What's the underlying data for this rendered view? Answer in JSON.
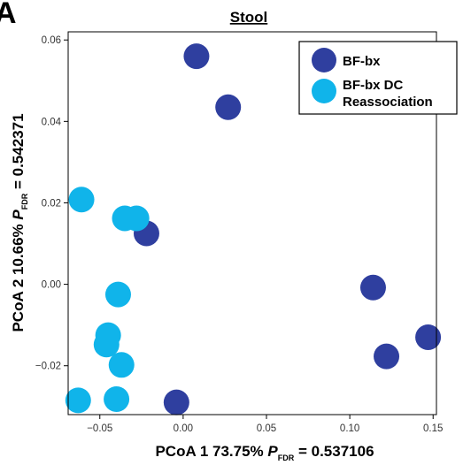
{
  "panel_letter": "A",
  "chart_data": {
    "type": "scatter",
    "title": "Stool",
    "xlabel": {
      "prefix": "PCoA 1 73.75% ",
      "p_letter": "P",
      "p_sub": "FDR",
      "suffix": " = 0.537106"
    },
    "ylabel": {
      "prefix": "PCoA 2 10.66% ",
      "p_letter": "P",
      "p_sub": "FDR",
      "suffix": " = 0.542371"
    },
    "xlim": [
      -0.069,
      0.152
    ],
    "ylim": [
      -0.032,
      0.062
    ],
    "x_ticks": [
      -0.05,
      0.0,
      0.05,
      0.1,
      0.15
    ],
    "x_tick_labels": [
      "−0.05",
      "0.00",
      "0.05",
      "0.10",
      "0.15"
    ],
    "y_ticks": [
      -0.02,
      0.0,
      0.02,
      0.04,
      0.06
    ],
    "y_tick_labels": [
      "−0.02",
      "0.00",
      "0.02",
      "0.04",
      "0.06"
    ],
    "grid": false,
    "legend_position": "top-right",
    "series": [
      {
        "name": "BF-bx",
        "color": "#2f3f9f",
        "points": [
          {
            "x": 0.008,
            "y": 0.056
          },
          {
            "x": 0.027,
            "y": 0.0435
          },
          {
            "x": -0.022,
            "y": 0.0125
          },
          {
            "x": 0.114,
            "y": -0.0008
          },
          {
            "x": 0.147,
            "y": -0.013
          },
          {
            "x": 0.122,
            "y": -0.0177
          },
          {
            "x": -0.004,
            "y": -0.029
          }
        ]
      },
      {
        "name": "BF-bx DC\nReassociation",
        "color": "#10b4ea",
        "points": [
          {
            "x": -0.061,
            "y": 0.0208
          },
          {
            "x": -0.035,
            "y": 0.0162
          },
          {
            "x": -0.028,
            "y": 0.0162
          },
          {
            "x": -0.039,
            "y": -0.0025
          },
          {
            "x": -0.045,
            "y": -0.0125
          },
          {
            "x": -0.046,
            "y": -0.0148
          },
          {
            "x": -0.037,
            "y": -0.0198
          },
          {
            "x": -0.063,
            "y": -0.0285
          },
          {
            "x": -0.04,
            "y": -0.0282
          }
        ]
      }
    ]
  }
}
